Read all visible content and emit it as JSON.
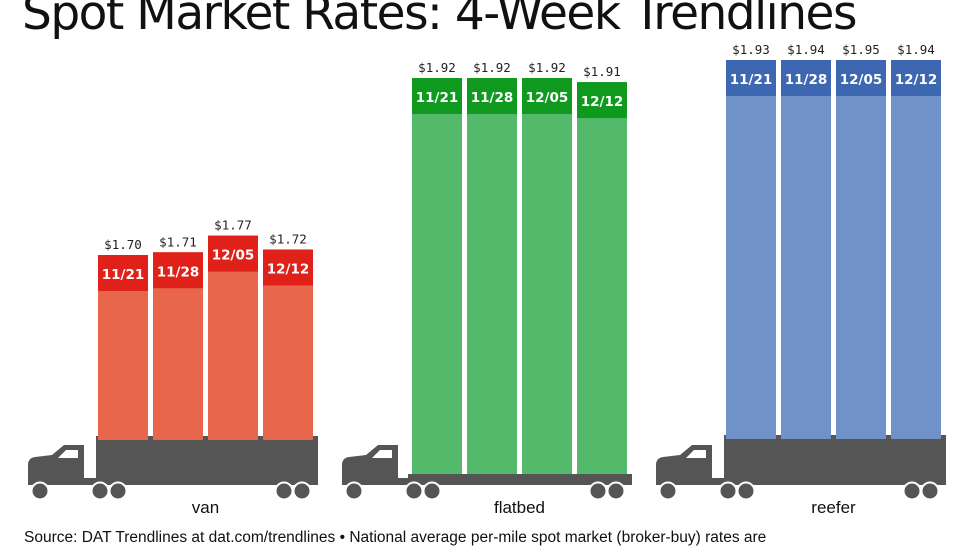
{
  "title": "Spot Market Rates: 4-Week Trendlines",
  "source": "Source: DAT Trendlines at dat.com/trendlines • National average per-mile spot market (broker-buy) rates are",
  "colors": {
    "van": {
      "bar": "#e8674c",
      "band": "#e0211a"
    },
    "flatbed": {
      "bar": "#54b96b",
      "band": "#0f9a1f"
    },
    "reefer": {
      "bar": "#7092c8",
      "band": "#3d67b0"
    },
    "truck": "#555555"
  },
  "icons": [
    "truck-icon",
    "trailer-icon"
  ],
  "chart_data": {
    "type": "bar",
    "categories": [
      "11/21",
      "11/28",
      "12/05",
      "12/12"
    ],
    "groups": [
      {
        "name": "van",
        "values": [
          1.7,
          1.71,
          1.77,
          1.72
        ],
        "labels": [
          "$1.70",
          "$1.71",
          "$1.77",
          "$1.72"
        ]
      },
      {
        "name": "flatbed",
        "values": [
          1.92,
          1.92,
          1.92,
          1.91
        ],
        "labels": [
          "$1.92",
          "$1.92",
          "$1.92",
          "$1.91"
        ]
      },
      {
        "name": "reefer",
        "values": [
          1.93,
          1.94,
          1.95,
          1.94
        ],
        "labels": [
          "$1.93",
          "$1.94",
          "$1.95",
          "$1.94"
        ]
      }
    ],
    "title": "Spot Market Rates: 4-Week Trendlines",
    "xlabel": "",
    "ylabel": "",
    "grid": false,
    "legend": "none"
  }
}
